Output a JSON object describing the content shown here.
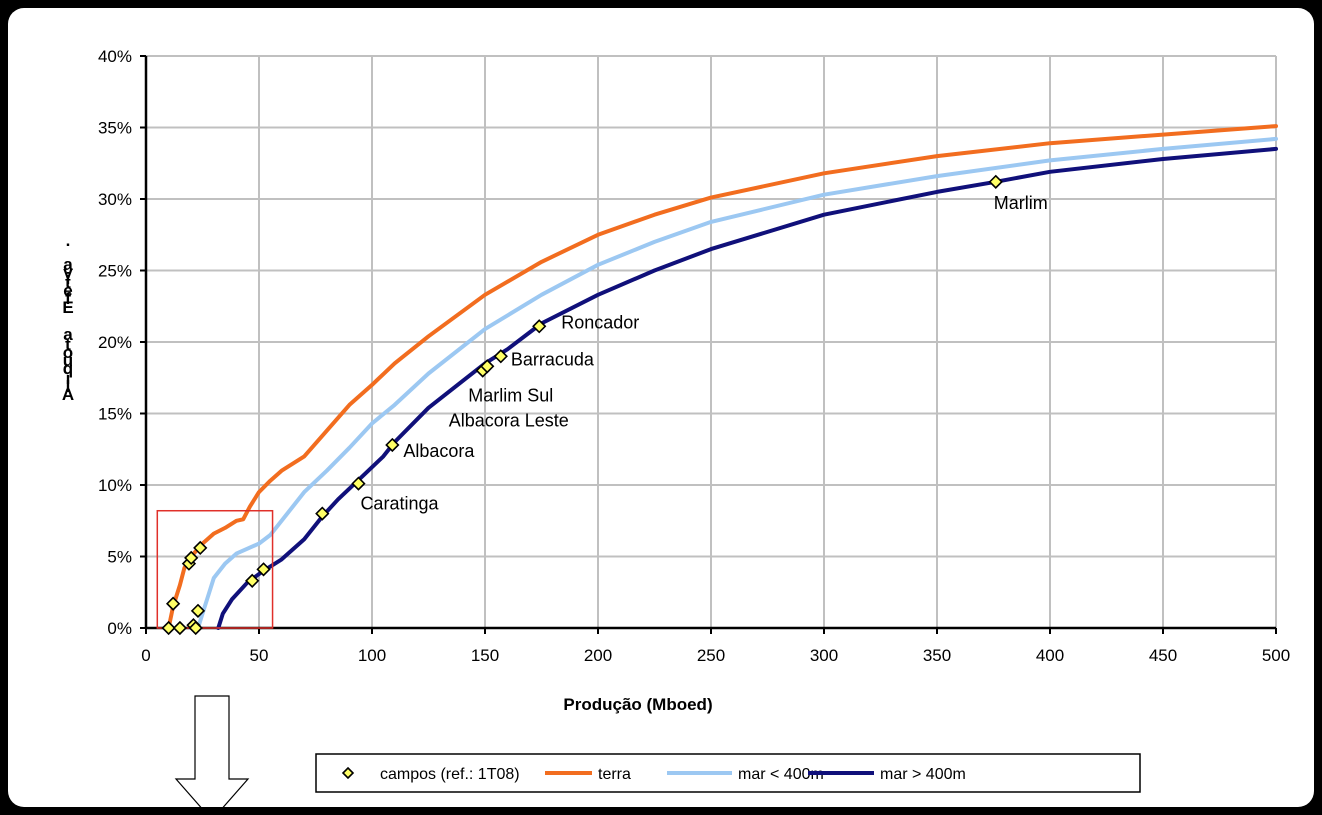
{
  "colors": {
    "terra": "#f26d1f",
    "mar_lt_400m": "#9cc8f2",
    "mar_gt_400m": "#10107a",
    "marker": "#ffff66",
    "zoom_box": "#e0302a"
  },
  "chart_data": {
    "type": "line",
    "title": "",
    "xlabel": "Produção (Mboed)",
    "ylabel": "Alíquota Efetiva",
    "xlim": [
      0,
      500
    ],
    "ylim": [
      0,
      40
    ],
    "x_ticks": [
      "0",
      "50",
      "100",
      "150",
      "200",
      "250",
      "300",
      "350",
      "400",
      "450",
      "500"
    ],
    "y_ticks": [
      "0%",
      "5%",
      "10%",
      "15%",
      "20%",
      "25%",
      "30%",
      "35%",
      "40%"
    ],
    "grid": true,
    "legend_position": "bottom",
    "series": [
      {
        "name": "terra",
        "color": "#f26d1f",
        "points": [
          [
            10,
            0
          ],
          [
            12,
            1.5
          ],
          [
            15,
            3
          ],
          [
            17,
            4.2
          ],
          [
            20,
            5
          ],
          [
            25,
            5.9
          ],
          [
            30,
            6.6
          ],
          [
            35,
            7
          ],
          [
            40,
            7.5
          ],
          [
            43,
            7.6
          ],
          [
            46,
            8.5
          ],
          [
            50,
            9.5
          ],
          [
            55,
            10.3
          ],
          [
            60,
            11
          ],
          [
            70,
            12
          ],
          [
            80,
            13.8
          ],
          [
            90,
            15.6
          ],
          [
            100,
            17
          ],
          [
            110,
            18.5
          ],
          [
            125,
            20.4
          ],
          [
            150,
            23.3
          ],
          [
            175,
            25.6
          ],
          [
            200,
            27.5
          ],
          [
            225,
            28.9
          ],
          [
            250,
            30.1
          ],
          [
            300,
            31.8
          ],
          [
            350,
            33
          ],
          [
            400,
            33.9
          ],
          [
            450,
            34.5
          ],
          [
            500,
            35.1
          ]
        ]
      },
      {
        "name": "mar < 400m",
        "color": "#9cc8f2",
        "points": [
          [
            23,
            0
          ],
          [
            25,
            1
          ],
          [
            28,
            2.5
          ],
          [
            30,
            3.5
          ],
          [
            35,
            4.5
          ],
          [
            40,
            5.2
          ],
          [
            50,
            5.9
          ],
          [
            55,
            6.5
          ],
          [
            60,
            7.5
          ],
          [
            70,
            9.5
          ],
          [
            80,
            11
          ],
          [
            90,
            12.6
          ],
          [
            100,
            14.3
          ],
          [
            110,
            15.6
          ],
          [
            125,
            17.8
          ],
          [
            150,
            20.9
          ],
          [
            175,
            23.3
          ],
          [
            200,
            25.4
          ],
          [
            225,
            27
          ],
          [
            250,
            28.4
          ],
          [
            300,
            30.3
          ],
          [
            350,
            31.6
          ],
          [
            400,
            32.7
          ],
          [
            450,
            33.5
          ],
          [
            500,
            34.2
          ]
        ]
      },
      {
        "name": "mar > 400m",
        "color": "#10107a",
        "points": [
          [
            32,
            0
          ],
          [
            34,
            1
          ],
          [
            38,
            2
          ],
          [
            45,
            3.2
          ],
          [
            52,
            4
          ],
          [
            60,
            4.8
          ],
          [
            70,
            6.2
          ],
          [
            78,
            7.8
          ],
          [
            85,
            9
          ],
          [
            95,
            10.5
          ],
          [
            105,
            12
          ],
          [
            110,
            13
          ],
          [
            125,
            15.4
          ],
          [
            150,
            18.5
          ],
          [
            160,
            19.5
          ],
          [
            175,
            21.3
          ],
          [
            200,
            23.3
          ],
          [
            225,
            25
          ],
          [
            250,
            26.5
          ],
          [
            300,
            28.9
          ],
          [
            350,
            30.5
          ],
          [
            376,
            31.2
          ],
          [
            400,
            31.9
          ],
          [
            450,
            32.8
          ],
          [
            500,
            33.5
          ]
        ]
      }
    ],
    "fields": {
      "name": "campos (ref.: 1T08)",
      "points": [
        [
          10,
          0
        ],
        [
          15,
          0
        ],
        [
          21,
          0.2
        ],
        [
          22,
          0
        ],
        [
          12,
          1.7
        ],
        [
          23,
          1.2
        ],
        [
          19,
          4.5
        ],
        [
          20,
          4.9
        ],
        [
          24,
          5.6
        ],
        [
          47,
          3.3
        ],
        [
          52,
          4.1
        ],
        [
          78,
          8.0
        ],
        [
          94,
          10.1
        ],
        [
          109,
          12.8
        ],
        [
          149,
          18.0
        ],
        [
          151,
          18.3
        ],
        [
          157,
          19.0
        ],
        [
          174,
          21.1
        ],
        [
          376,
          31.2
        ]
      ]
    },
    "annotations": [
      {
        "text": "Marlim",
        "x": 376,
        "y": 31.2
      },
      {
        "text": "Roncador",
        "x": 174,
        "y": 21.1
      },
      {
        "text": "Barracuda",
        "x": 157,
        "y": 19.0
      },
      {
        "text": "Marlim Sul",
        "x": 151,
        "y": 18.3
      },
      {
        "text": "Albacora Leste",
        "x": 149,
        "y": 18.0
      },
      {
        "text": "Albacora",
        "x": 109,
        "y": 12.8
      },
      {
        "text": "Caratinga",
        "x": 94,
        "y": 10.1
      }
    ],
    "zoom_region": {
      "xmin": 5,
      "xmax": 56,
      "ymin": 0,
      "ymax": 8.2
    }
  }
}
